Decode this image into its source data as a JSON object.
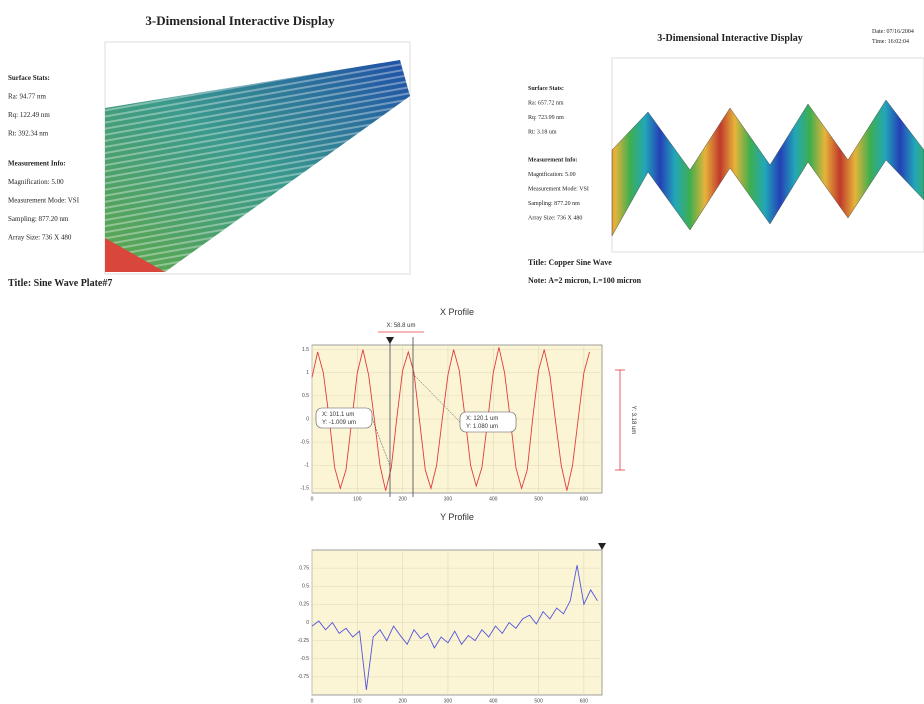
{
  "left": {
    "title": "3-Dimensional Interactive Display",
    "stats_heading": "Surface Stats:",
    "stats": [
      "Ra: 94.77 nm",
      "Rq: 122.49 nm",
      "Rt: 392.34 nm"
    ],
    "info_heading": "Measurement Info:",
    "info": [
      "Magnification: 5.00",
      "Measurement Mode: VSI",
      "Sampling: 877.20 nm",
      "Array Size: 736 X 480"
    ],
    "caption": "Title: Sine Wave Plate#7"
  },
  "right": {
    "title": "3-Dimensional Interactive Display",
    "date": "Date: 07/16/2004",
    "time": "Time: 16:02:04",
    "stats_heading": "Surface Stats:",
    "stats": [
      "Ra: 657.72 nm",
      "Rq: 723.99 nm",
      "Rt: 3.18 um"
    ],
    "info_heading": "Measurement Info:",
    "info": [
      "Magnification: 5.00",
      "Measurement Mode: VSI",
      "Sampling: 877.20 nm",
      "Array Size: 736 X 480"
    ],
    "caption": "Title: Copper Sine Wave",
    "note": "Note: A=2 micron, L=100 micron"
  },
  "chart_data": [
    {
      "type": "line",
      "title": "X Profile",
      "color": "#e03c3c",
      "x": [
        0,
        12.5,
        25,
        37.5,
        50,
        62.5,
        75,
        87.5,
        100,
        112.5,
        125,
        137.5,
        150,
        162.5,
        175,
        187.5,
        200,
        212.5,
        225,
        237.5,
        250,
        262.5,
        275,
        287.5,
        300,
        312.5,
        325,
        337.5,
        350,
        362.5,
        375,
        387.5,
        400,
        412.5,
        425,
        437.5,
        450,
        462.5,
        475,
        487.5,
        500,
        512.5,
        525,
        537.5,
        550,
        562.5,
        575,
        587.5,
        600,
        612.5
      ],
      "values": [
        0.9,
        1.45,
        1.0,
        0.05,
        -1.05,
        -1.5,
        -1.1,
        -0.05,
        1.0,
        1.5,
        0.95,
        0.0,
        -1.0,
        -1.55,
        -1.05,
        0.05,
        1.05,
        1.45,
        1.0,
        -0.05,
        -1.1,
        -1.5,
        -1.0,
        0.0,
        0.95,
        1.5,
        1.05,
        0.05,
        -1.0,
        -1.45,
        -1.05,
        -0.05,
        1.0,
        1.55,
        1.0,
        0.0,
        -1.05,
        -1.5,
        -1.1,
        0.05,
        1.05,
        1.5,
        0.95,
        -0.05,
        -1.0,
        -1.55,
        -1.0,
        0.0,
        1.0,
        1.45
      ],
      "xlim": [
        0,
        640
      ],
      "xticks": [
        0,
        100,
        200,
        300,
        400,
        500,
        600
      ],
      "ylim": [
        -1.6,
        1.6
      ],
      "yticks": [
        -1.5,
        -1,
        -0.5,
        0,
        0.5,
        1,
        1.5
      ],
      "grid": true,
      "marker_label": "X: 58.8 um",
      "range_label": "Y: 3.18 um",
      "annotations": [
        {
          "x_label": "X: 101.1 um",
          "y_label": "Y: -1.009 um"
        },
        {
          "x_label": "X: 120.1 um",
          "y_label": "Y: 1.080 um"
        }
      ]
    },
    {
      "type": "line",
      "title": "Y Profile",
      "color": "#5555dd",
      "x": [
        0,
        15,
        30,
        45,
        60,
        75,
        90,
        105,
        120,
        135,
        150,
        165,
        180,
        195,
        210,
        225,
        240,
        255,
        270,
        285,
        300,
        315,
        330,
        345,
        360,
        375,
        390,
        405,
        420,
        435,
        450,
        465,
        480,
        495,
        510,
        525,
        540,
        555,
        570,
        585,
        600,
        615,
        630
      ],
      "values": [
        -0.05,
        0.02,
        -0.1,
        0.0,
        -0.15,
        -0.08,
        -0.2,
        -0.12,
        -0.93,
        -0.2,
        -0.1,
        -0.25,
        -0.05,
        -0.18,
        -0.3,
        -0.1,
        -0.22,
        -0.15,
        -0.35,
        -0.2,
        -0.28,
        -0.12,
        -0.3,
        -0.18,
        -0.25,
        -0.1,
        -0.2,
        -0.05,
        -0.15,
        0.0,
        -0.08,
        0.05,
        0.1,
        -0.02,
        0.15,
        0.05,
        0.2,
        0.12,
        0.3,
        0.79,
        0.25,
        0.45,
        0.3
      ],
      "xlim": [
        0,
        640
      ],
      "xticks": [
        0,
        100,
        200,
        300,
        400,
        500,
        600
      ],
      "ylim": [
        -1,
        1
      ],
      "yticks": [
        -0.75,
        -0.5,
        -0.25,
        0,
        0.25,
        0.5,
        0.75
      ],
      "grid": true
    }
  ]
}
